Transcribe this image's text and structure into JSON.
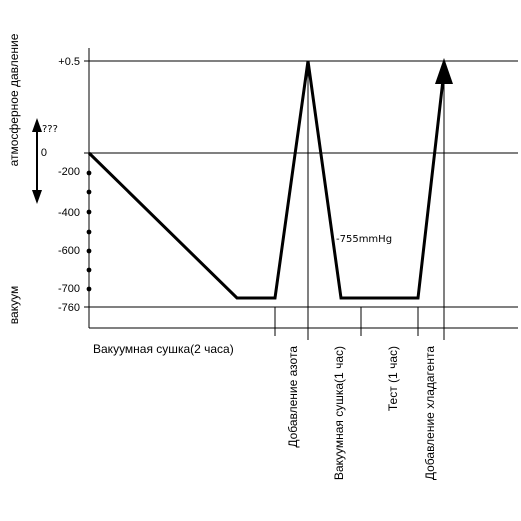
{
  "y_axis": {
    "label_top": "атмосферное давление",
    "label_bottom": "вакуум",
    "ticks": [
      "+0.5",
      "0",
      "-200",
      "-400",
      "-600",
      "-700",
      "-760"
    ]
  },
  "unknown_marker": "???",
  "annotation": "-755mmHg",
  "phases": {
    "vacuum_drying_2h": "Вакуумная сушка(2 часа)",
    "nitrogen_add": "Добавление азота",
    "vacuum_drying_1h": "Вакуумная сушка(1 час)",
    "test_1h": "Тест (1 час)",
    "refrigerant_add": "Добавление хладагента"
  },
  "colors": {
    "line": "#000000",
    "background": "#ffffff"
  }
}
